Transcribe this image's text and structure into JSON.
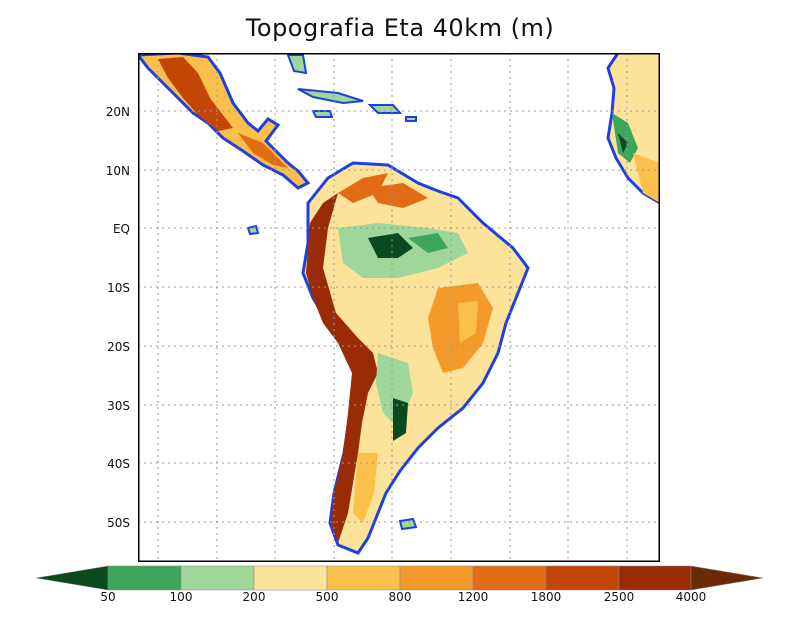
{
  "title": "Topografia Eta 40km (m)",
  "lat_labels": [
    "20N",
    "10N",
    "EQ",
    "10S",
    "20S",
    "30S",
    "40S",
    "50S"
  ],
  "legend": {
    "thresholds": [
      "50",
      "100",
      "200",
      "500",
      "800",
      "1200",
      "1800",
      "2500",
      "4000"
    ],
    "colors": [
      "#0b4a1f",
      "#3ea65a",
      "#9fd79a",
      "#fde39a",
      "#fbc04c",
      "#f39a2b",
      "#e26b16",
      "#c44606",
      "#9a2c05",
      "#6b2a06"
    ]
  },
  "ocean_outline_color": "#1f3fe0"
}
